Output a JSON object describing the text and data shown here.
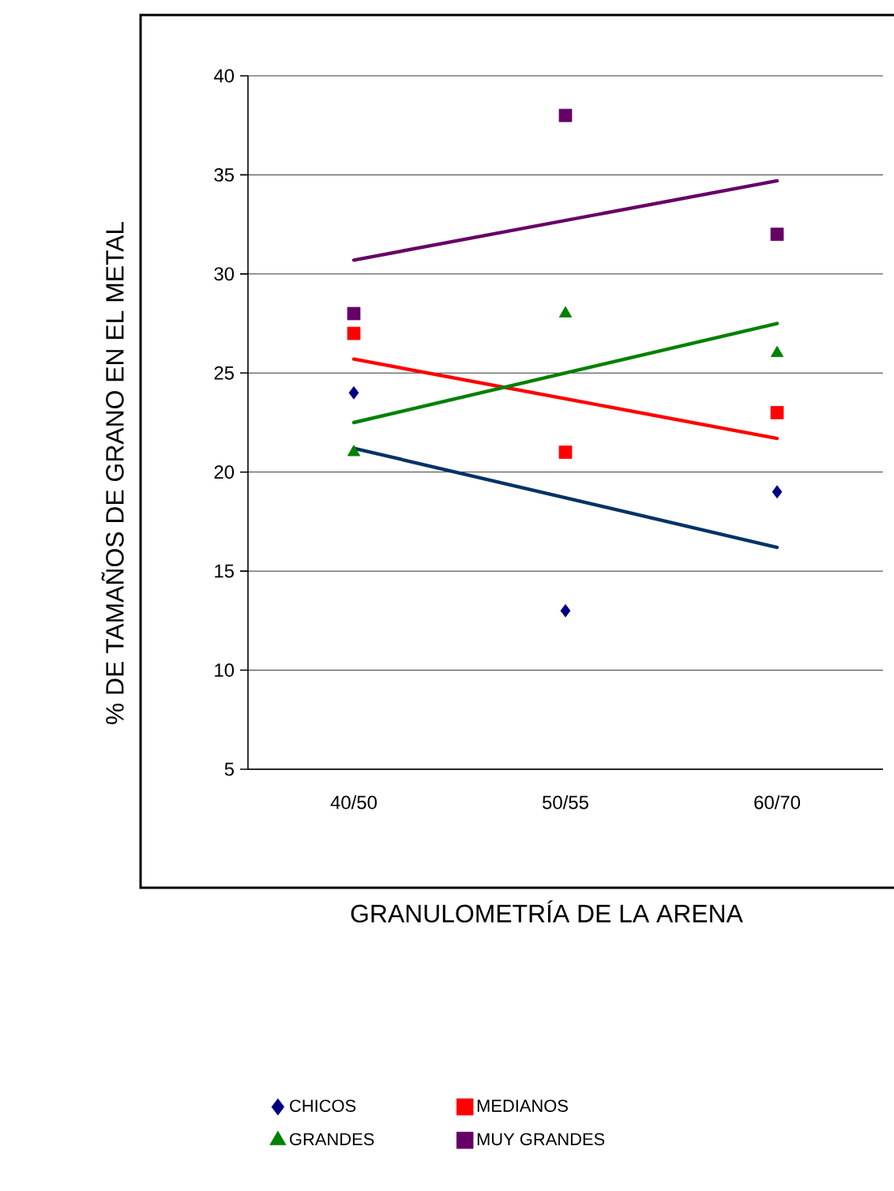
{
  "chart_data": {
    "type": "scatter",
    "xlabel": "GRANULOMETRÍA DE LA ARENA",
    "ylabel": "% DE TAMAÑOS DE GRANO EN EL METAL",
    "categories": [
      "40/50",
      "50/55",
      "60/70"
    ],
    "series": [
      {
        "name": "CHICOS",
        "type": "scatter",
        "color": "#000080",
        "marker": "diamond",
        "values": [
          24,
          13,
          19
        ]
      },
      {
        "name": "MEDIANOS",
        "type": "scatter",
        "color": "#ff0000",
        "marker": "square",
        "values": [
          27,
          21,
          23
        ]
      },
      {
        "name": "GRANDES",
        "type": "scatter",
        "color": "#008000",
        "marker": "triangle",
        "values": [
          21,
          28,
          26
        ]
      },
      {
        "name": "MUY GRANDES",
        "type": "scatter",
        "color": "#660066",
        "marker": "square",
        "values": [
          28,
          38,
          32
        ]
      },
      {
        "type": "line",
        "color": "#003366",
        "x": [
          "40/50",
          "60/70"
        ],
        "values": [
          21.2,
          16.2
        ]
      },
      {
        "type": "line",
        "color": "#ff0000",
        "x": [
          "40/50",
          "60/70"
        ],
        "values": [
          25.7,
          21.7
        ]
      },
      {
        "type": "line",
        "color": "#008000",
        "x": [
          "40/50",
          "60/70"
        ],
        "values": [
          22.5,
          27.5
        ]
      },
      {
        "type": "line",
        "color": "#660066",
        "x": [
          "40/50",
          "60/70"
        ],
        "values": [
          30.7,
          34.7
        ]
      }
    ],
    "ylim": [
      5,
      40
    ],
    "yticks": [
      5,
      10,
      15,
      20,
      25,
      30,
      35,
      40
    ],
    "grid": "y",
    "legend": "bottom"
  }
}
